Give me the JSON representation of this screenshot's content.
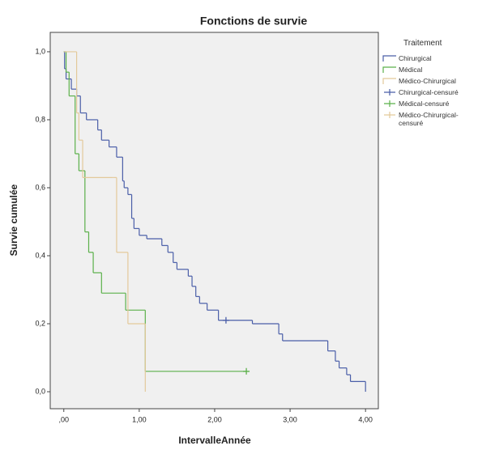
{
  "chart_data": {
    "type": "step",
    "title": "Fonctions de survie",
    "x_label": "IntervalleAnnée",
    "y_label": "Survie cumulée",
    "legend_title": "Traitement",
    "legend_position": "right",
    "xlim": [
      -0.18,
      4.17
    ],
    "ylim": [
      -0.05,
      1.057
    ],
    "xticks": [
      {
        "value": 0,
        "label": ",00"
      },
      {
        "value": 1,
        "label": "1,00"
      },
      {
        "value": 2,
        "label": "2,00"
      },
      {
        "value": 3,
        "label": "3,00"
      },
      {
        "value": 4,
        "label": "4,00"
      }
    ],
    "yticks": [
      {
        "value": 0,
        "label": "0,0"
      },
      {
        "value": 0.2,
        "label": "0,2"
      },
      {
        "value": 0.4,
        "label": "0,4"
      },
      {
        "value": 0.6,
        "label": "0,6"
      },
      {
        "value": 0.8,
        "label": "0,8"
      },
      {
        "value": 1,
        "label": "1,0"
      }
    ],
    "series": [
      {
        "name": "Chirurgical",
        "color": "#4a5ea8",
        "x": [
          0,
          0.01,
          0.03,
          0.1,
          0.17,
          0.22,
          0.3,
          0.45,
          0.5,
          0.6,
          0.7,
          0.78,
          0.8,
          0.85,
          0.9,
          0.93,
          1.0,
          1.1,
          1.3,
          1.38,
          1.45,
          1.5,
          1.65,
          1.7,
          1.75,
          1.8,
          1.9,
          2.05,
          2.5,
          2.85,
          2.9,
          3.5,
          3.6,
          3.65,
          3.75,
          3.8,
          4.0
        ],
        "values": [
          1.0,
          0.95,
          0.92,
          0.89,
          0.87,
          0.82,
          0.8,
          0.77,
          0.74,
          0.72,
          0.69,
          0.62,
          0.6,
          0.58,
          0.51,
          0.48,
          0.46,
          0.45,
          0.43,
          0.41,
          0.38,
          0.36,
          0.34,
          0.31,
          0.28,
          0.26,
          0.24,
          0.21,
          0.2,
          0.17,
          0.15,
          0.12,
          0.09,
          0.07,
          0.05,
          0.03,
          0.0
        ]
      },
      {
        "name": "Médical",
        "color": "#5bb04a",
        "x": [
          0,
          0.03,
          0.07,
          0.15,
          0.2,
          0.28,
          0.33,
          0.39,
          0.5,
          0.82,
          1.08,
          2.42
        ],
        "values": [
          1.0,
          0.94,
          0.87,
          0.7,
          0.65,
          0.47,
          0.41,
          0.35,
          0.29,
          0.24,
          0.06,
          0.06
        ]
      },
      {
        "name": "Médico-Chirurgical",
        "color": "#e3c99a",
        "x": [
          0,
          0.17,
          0.2,
          0.25,
          0.65,
          0.7,
          0.85,
          1.08
        ],
        "values": [
          1.0,
          0.82,
          0.74,
          0.63,
          0.63,
          0.41,
          0.2,
          0.0
        ]
      },
      {
        "name": "Chirurgical-censuré",
        "color": "#4a5ea8",
        "marker": "plus",
        "x": [
          2.15
        ],
        "values": [
          0.21
        ]
      },
      {
        "name": "Médical-censuré",
        "color": "#5bb04a",
        "marker": "plus",
        "x": [
          2.42
        ],
        "values": [
          0.06
        ]
      },
      {
        "name": "Médico-Chirurgical-censuré",
        "color": "#e3c99a",
        "marker": "plus",
        "x": [],
        "values": []
      }
    ]
  }
}
